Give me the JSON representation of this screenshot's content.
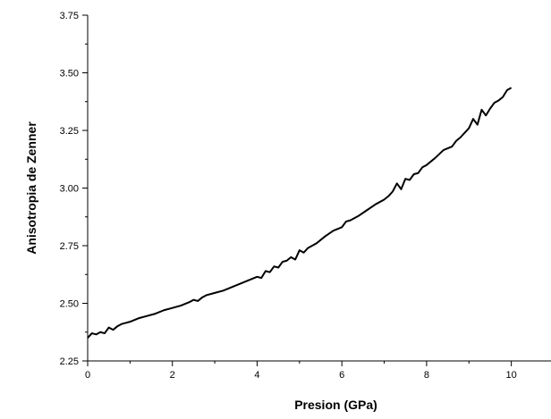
{
  "chart_data": {
    "type": "line",
    "title": "",
    "xlabel": "Presion (GPa)",
    "ylabel": "Anisotropia de Zenner",
    "xlim": [
      0,
      11
    ],
    "ylim": [
      2.25,
      3.75
    ],
    "xticks": [
      0,
      2,
      4,
      6,
      8,
      10
    ],
    "xtick_labels": [
      "0",
      "2",
      "4",
      "6",
      "8",
      "10"
    ],
    "yticks": [
      2.25,
      2.5,
      2.75,
      3.0,
      3.25,
      3.5,
      3.75
    ],
    "ytick_labels": [
      "2.25",
      "2.50",
      "2.75",
      "3.00",
      "3.25",
      "3.50",
      "3.75"
    ],
    "grid": false,
    "legend": "none",
    "line_color": "#000000",
    "series": [
      {
        "x": [
          0,
          0.1,
          0.2,
          0.3,
          0.4,
          0.5,
          0.6,
          0.7,
          0.8,
          0.9,
          1.0,
          1.2,
          1.4,
          1.6,
          1.8,
          2.0,
          2.2,
          2.4,
          2.5,
          2.6,
          2.7,
          2.8,
          3.0,
          3.2,
          3.4,
          3.6,
          3.8,
          4.0,
          4.1,
          4.2,
          4.3,
          4.4,
          4.5,
          4.6,
          4.7,
          4.8,
          4.9,
          5.0,
          5.1,
          5.2,
          5.3,
          5.4,
          5.6,
          5.8,
          6.0,
          6.1,
          6.2,
          6.4,
          6.6,
          6.8,
          7.0,
          7.1,
          7.2,
          7.3,
          7.4,
          7.5,
          7.6,
          7.7,
          7.8,
          7.9,
          8.0,
          8.1,
          8.2,
          8.4,
          8.6,
          8.7,
          8.8,
          9.0,
          9.1,
          9.2,
          9.3,
          9.4,
          9.5,
          9.6,
          9.7,
          9.8,
          9.9,
          10.0
        ],
        "y": [
          2.35,
          2.37,
          2.365,
          2.375,
          2.37,
          2.395,
          2.385,
          2.4,
          2.41,
          2.415,
          2.42,
          2.435,
          2.445,
          2.455,
          2.47,
          2.48,
          2.49,
          2.505,
          2.515,
          2.51,
          2.525,
          2.535,
          2.545,
          2.555,
          2.57,
          2.585,
          2.6,
          2.615,
          2.61,
          2.64,
          2.635,
          2.66,
          2.655,
          2.68,
          2.685,
          2.7,
          2.69,
          2.73,
          2.72,
          2.74,
          2.75,
          2.76,
          2.79,
          2.815,
          2.83,
          2.855,
          2.86,
          2.88,
          2.905,
          2.93,
          2.95,
          2.965,
          2.985,
          3.02,
          2.995,
          3.04,
          3.035,
          3.06,
          3.065,
          3.09,
          3.1,
          3.115,
          3.13,
          3.165,
          3.18,
          3.205,
          3.22,
          3.26,
          3.3,
          3.275,
          3.34,
          3.315,
          3.345,
          3.37,
          3.38,
          3.395,
          3.425,
          3.435
        ]
      }
    ]
  }
}
